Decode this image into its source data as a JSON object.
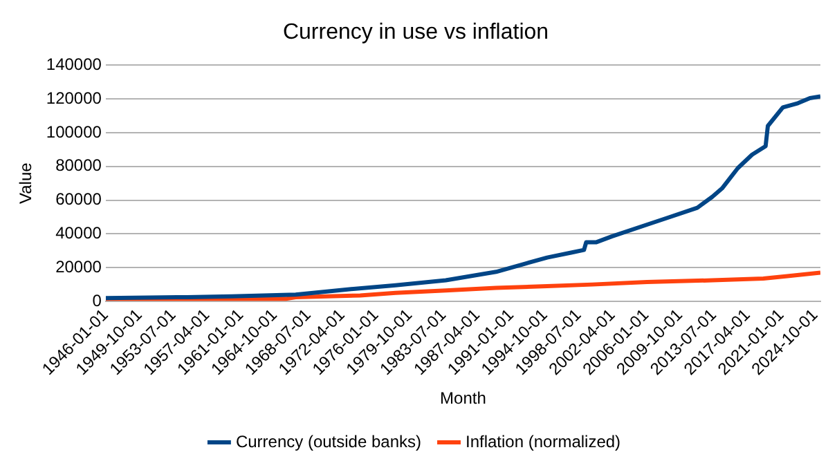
{
  "chart_data": {
    "type": "line",
    "title": "Currency in use vs inflation",
    "xlabel": "Month",
    "ylabel": "Value",
    "xlim": [
      "1946-01-01",
      "2025-05-01"
    ],
    "xticks": [
      "1946-01-01",
      "1949-10-01",
      "1953-07-01",
      "1957-04-01",
      "1961-01-01",
      "1964-10-01",
      "1968-07-01",
      "1972-04-01",
      "1976-01-01",
      "1979-10-01",
      "1983-07-01",
      "1987-04-01",
      "1991-01-01",
      "1994-10-01",
      "1998-07-01",
      "2002-04-01",
      "2006-01-01",
      "2009-10-01",
      "2013-07-01",
      "2017-04-01",
      "2021-01-01",
      "2024-10-01"
    ],
    "ylim": [
      0,
      140000
    ],
    "yticks": [
      0,
      20000,
      40000,
      60000,
      80000,
      100000,
      120000,
      140000
    ],
    "grid": "y",
    "legend": "bottom",
    "marker": "none",
    "line_style": "solid",
    "series": [
      {
        "name": "Currency (outside banks)",
        "color": "#004586",
        "x": [
          "1946-01-01",
          "1955-01-01",
          "1960-01-01",
          "1967-02-01",
          "1972-09-01",
          "1978-03-01",
          "1983-10-01",
          "1989-05-01",
          "1992-09-01",
          "1995-01-01",
          "1997-10-01",
          "1999-02-01",
          "1999-05-01",
          "2000-06-01",
          "2002-03-01",
          "2006-02-01",
          "2008-05-01",
          "2011-09-01",
          "2013-05-01",
          "2014-06-01",
          "2016-03-01",
          "2017-10-01",
          "2019-04-01",
          "2019-07-01",
          "2021-03-01",
          "2022-11-01",
          "2024-03-01",
          "2025-05-01"
        ],
        "values": [
          2000,
          2500,
          3000,
          4000,
          7000,
          9500,
          12500,
          17500,
          22500,
          26000,
          29000,
          30500,
          35000,
          35000,
          38500,
          45500,
          49500,
          55500,
          62000,
          67000,
          79000,
          87000,
          92000,
          104000,
          115000,
          117500,
          120500,
          121500
        ]
      },
      {
        "name": "Inflation (normalized)",
        "color": "#ff420e",
        "x": [
          "1946-01-01",
          "1966-01-01",
          "1967-02-01",
          "1974-04-01",
          "1978-03-01",
          "1983-10-01",
          "1989-05-01",
          "1995-01-01",
          "2000-01-01",
          "2006-02-01",
          "2013-05-01",
          "2019-01-01",
          "2021-09-01",
          "2025-05-01"
        ],
        "values": [
          1500,
          1500,
          2500,
          3500,
          5000,
          6500,
          8000,
          9000,
          10000,
          11500,
          12500,
          13500,
          15000,
          17000
        ]
      }
    ]
  }
}
